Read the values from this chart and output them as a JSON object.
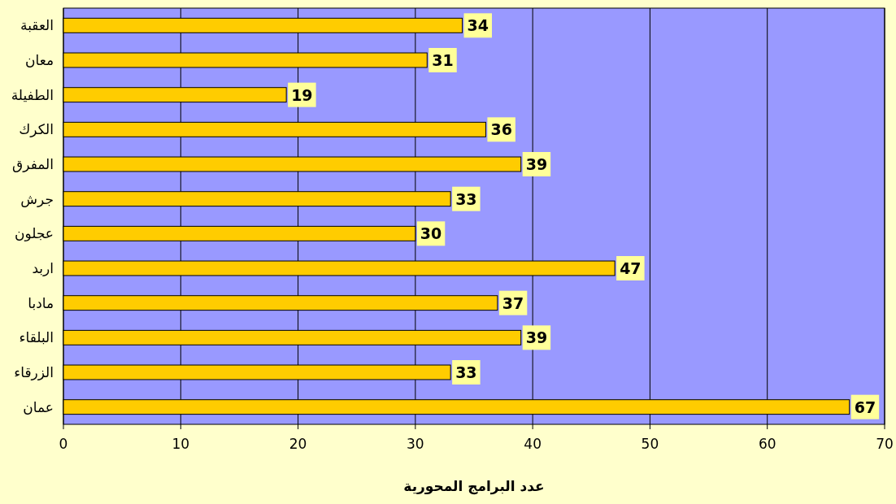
{
  "chart_data": {
    "type": "bar",
    "orientation": "horizontal",
    "categories": [
      "العقبة",
      "معان",
      "الطفيلة",
      "الكرك",
      "المفرق",
      "جرش",
      "عجلون",
      "اربد",
      "مادبا",
      "البلقاء",
      "الزرقاء",
      "عمان"
    ],
    "values": [
      34,
      31,
      19,
      36,
      39,
      33,
      30,
      47,
      37,
      39,
      33,
      67
    ],
    "color": "#ffcc00",
    "xlim": [
      0,
      70
    ],
    "xticks": [
      0,
      10,
      20,
      30,
      40,
      50,
      60,
      70
    ],
    "grid": "x",
    "data_labels": true,
    "xlabel": "عدد البرامج المحورية"
  }
}
